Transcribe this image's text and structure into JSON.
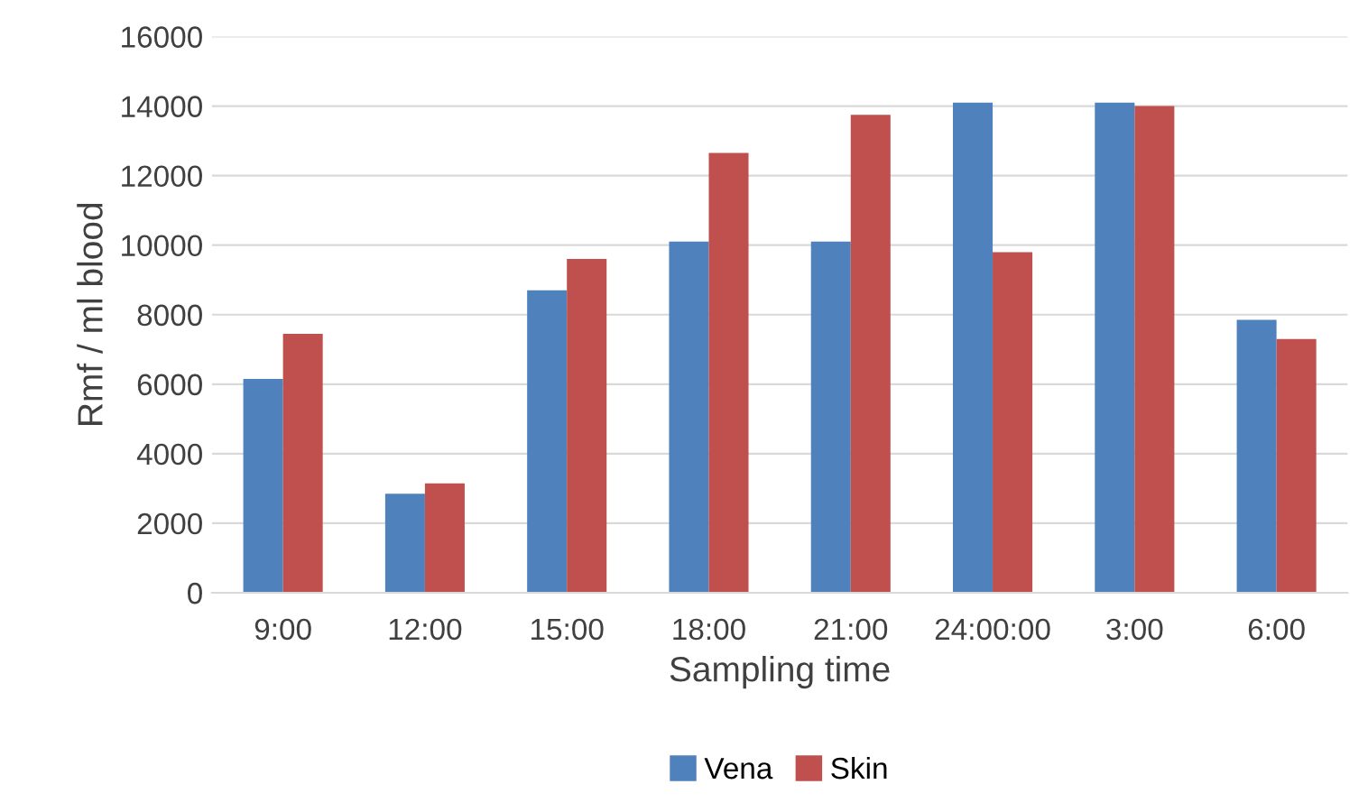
{
  "chart_data": {
    "type": "bar",
    "xlabel": "Sampling time",
    "ylabel": "Rmf / ml blood",
    "categories": [
      "9:00",
      "12:00",
      "15:00",
      "18:00",
      "21:00",
      "24:00:00",
      "3:00",
      "6:00"
    ],
    "series": [
      {
        "name": "Vena",
        "color": "#4f81bd",
        "values": [
          6150,
          2850,
          8700,
          10100,
          10100,
          14100,
          14100,
          7850
        ]
      },
      {
        "name": "Skin",
        "color": "#c0504d",
        "values": [
          7450,
          3150,
          9600,
          12650,
          13750,
          9800,
          14000,
          7300
        ]
      }
    ],
    "ylim": [
      0,
      16000
    ],
    "yticks": [
      0,
      2000,
      4000,
      6000,
      8000,
      10000,
      12000,
      14000,
      16000
    ],
    "grid": "y",
    "legend": "bottom"
  }
}
